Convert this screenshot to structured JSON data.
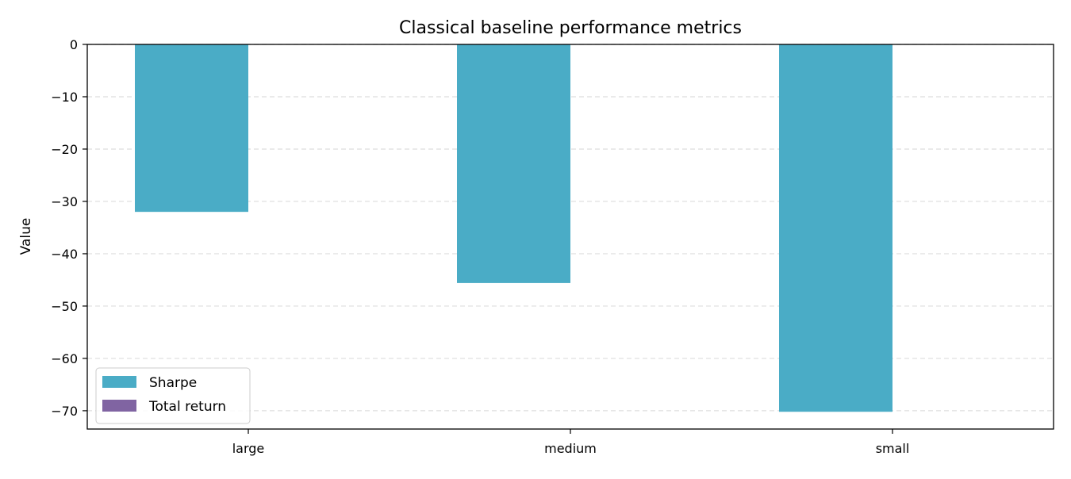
{
  "chart_data": {
    "type": "bar",
    "title": "Classical baseline performance metrics",
    "xlabel": "",
    "ylabel": "Value",
    "categories": [
      "large",
      "medium",
      "small"
    ],
    "series": [
      {
        "name": "Sharpe",
        "color": "#4aacc6",
        "values": [
          -32.0,
          -45.6,
          -70.2
        ]
      },
      {
        "name": "Total return",
        "color": "#8064a2",
        "values": [
          0.0,
          0.0,
          0.0
        ]
      }
    ],
    "ylim": [
      -73.5,
      0
    ],
    "yticks": [
      0,
      -10,
      -20,
      -30,
      -40,
      -50,
      -60,
      -70
    ],
    "ytick_labels": [
      "0",
      "−10",
      "−20",
      "−30",
      "−40",
      "−50",
      "−60",
      "−70"
    ],
    "grid": "y-dashed",
    "legend_position": "lower-left"
  }
}
